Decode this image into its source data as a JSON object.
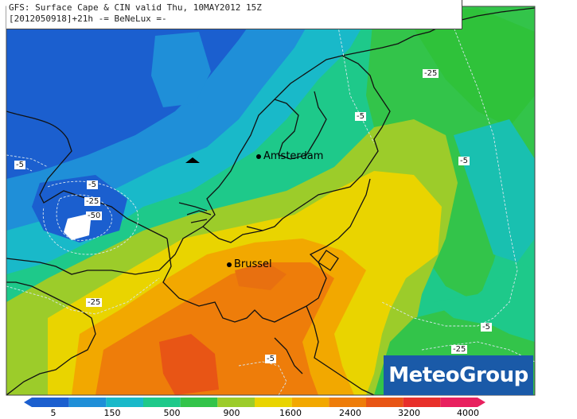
{
  "header": {
    "line1": "GFS: Surface Cape & CIN valid Thu, 10MAY2012 15Z",
    "line2": "[2012050918]+21h -= BeNeLux =-"
  },
  "cities": [
    {
      "name": "Amsterdam"
    },
    {
      "name": "Brussel"
    }
  ],
  "cin_labels": [
    "-25",
    "-5",
    "-5",
    "-5",
    "-5",
    "-25",
    "-50",
    "-25",
    "-5",
    "-25",
    "-5"
  ],
  "logo": {
    "text": "MeteoGroup",
    "color": "#1a5aa8"
  },
  "colorbar": {
    "ticks": [
      "5",
      "150",
      "500",
      "900",
      "1600",
      "2400",
      "3200",
      "4000"
    ],
    "colors": [
      "#1b5fcf",
      "#1f8fd8",
      "#19b9c9",
      "#1ec98a",
      "#33c44a",
      "#9ccc2a",
      "#e9d400",
      "#f2a800",
      "#ee7d0a",
      "#e85515",
      "#e8302a",
      "#e8205e"
    ]
  }
}
